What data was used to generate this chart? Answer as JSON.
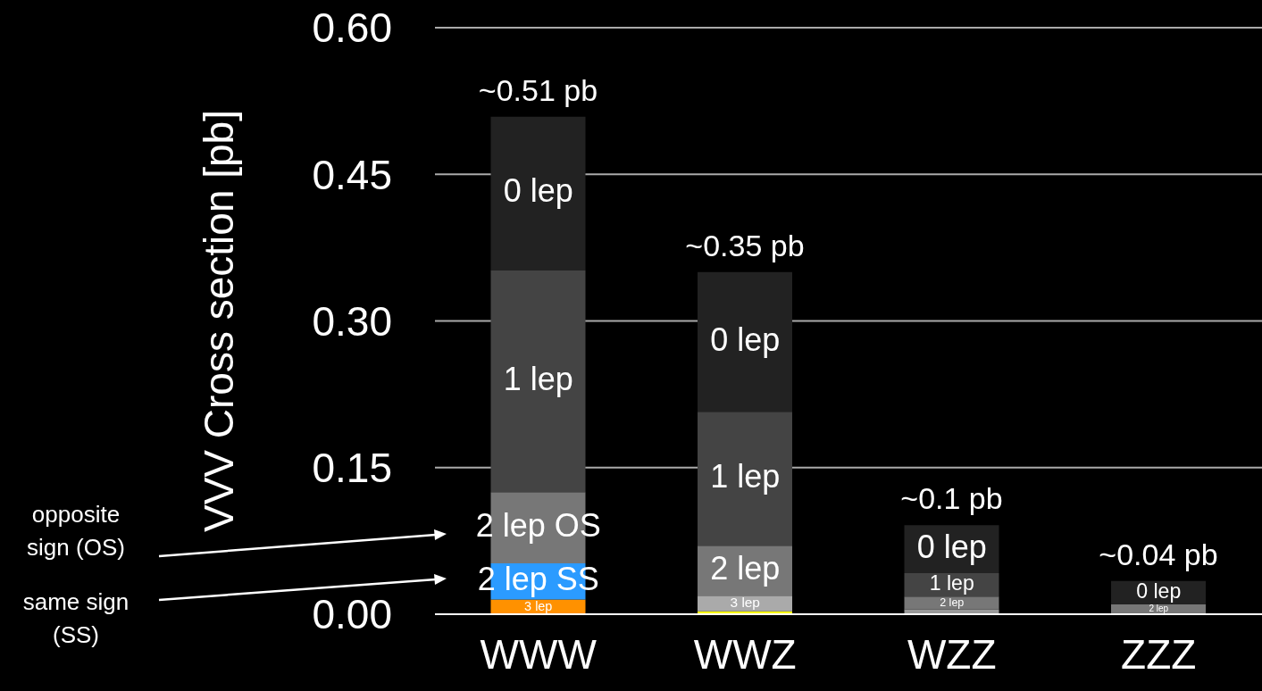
{
  "chart_data": {
    "type": "bar",
    "stacked": true,
    "ylabel": "VVV Cross section [pb]",
    "categories": [
      "WWW",
      "WWZ",
      "WZZ",
      "ZZZ"
    ],
    "ylim": [
      0,
      0.6
    ],
    "yticks": [
      {
        "value": 0,
        "label": "0.00"
      },
      {
        "value": 0.15,
        "label": "0.15"
      },
      {
        "value": 0.3,
        "label": "0.30"
      },
      {
        "value": 0.45,
        "label": "0.45"
      },
      {
        "value": 0.6,
        "label": "0.60"
      }
    ],
    "grid": "y",
    "series": [
      {
        "values": [
          0.015,
          0.003,
          0.005,
          null
        ],
        "colors": [
          "#ff9100",
          "#ffff00",
          "#999999",
          "#777777"
        ]
      },
      {
        "values": [
          0.037,
          0.016,
          0.013,
          0.01
        ],
        "colors": [
          "#2b9bff",
          "#aaaaaa",
          "#777777",
          "#777777"
        ]
      },
      {
        "values": [
          0.073,
          0.051,
          0.024,
          0.024
        ],
        "colors": [
          "#777777",
          "#777777",
          "#444444",
          "#222222"
        ]
      },
      {
        "values": [
          0.227,
          0.137,
          0.049,
          null
        ],
        "colors": [
          "#444444",
          "#444444",
          "#222222",
          "#222222"
        ]
      },
      {
        "values": [
          0.157,
          0.143,
          null,
          null
        ],
        "colors": [
          "#222222",
          "#222222",
          "#222222",
          "#222222"
        ]
      }
    ],
    "totals": [
      "~0.51 pb",
      "~0.35 pb",
      "~0.1 pb",
      "~0.04 pb"
    ],
    "legend": false,
    "annotations": [
      "3 lep",
      "2 lep SS",
      "2 lep OS",
      "1 lep",
      "0 lep",
      "3 lep",
      "2 lep",
      "1 lep",
      "0 lep",
      "2 lep",
      "1 lep",
      "0 lep",
      "2 lep",
      "0 lep",
      "opposite sign (OS)",
      "same sign (SS)"
    ]
  }
}
